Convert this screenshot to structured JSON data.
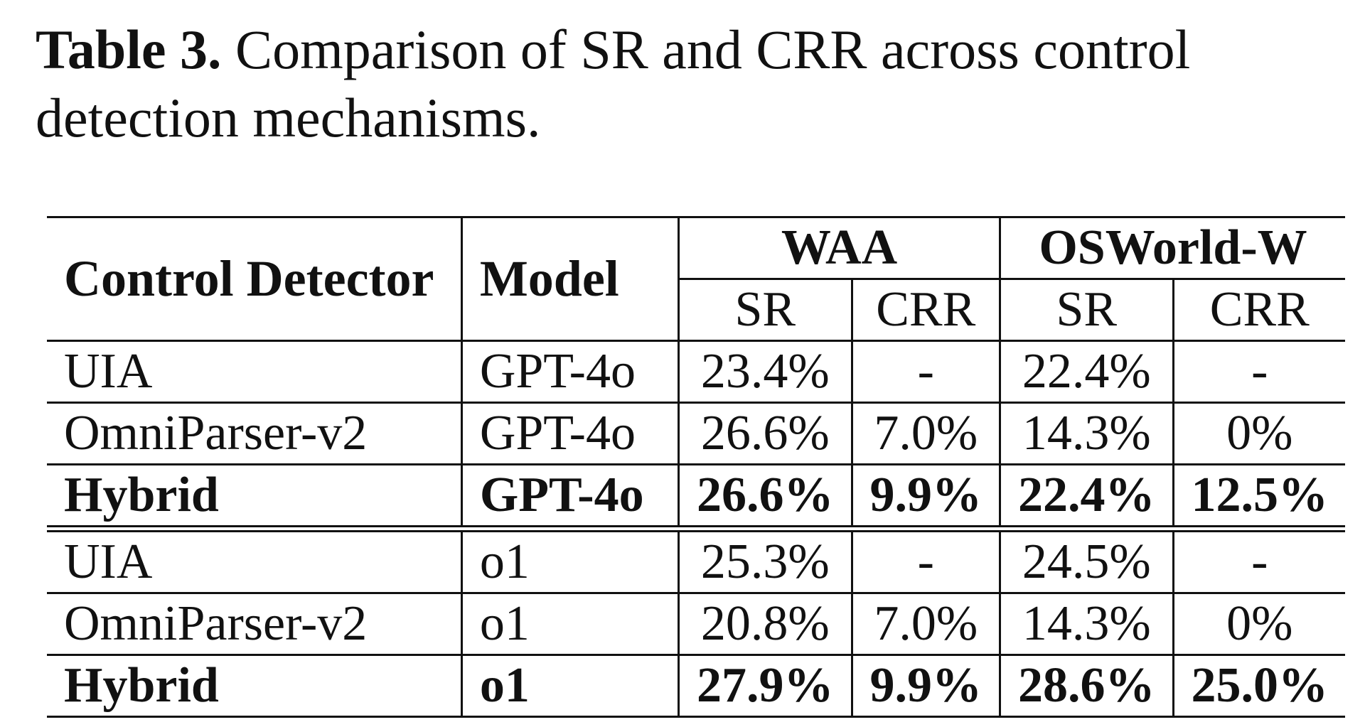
{
  "caption": {
    "label": "Table 3.",
    "text": " Comparison of SR and CRR across control detection mechanisms."
  },
  "table": {
    "header": {
      "detector": "Control Detector",
      "model": "Model",
      "group_waa": "WAA",
      "group_osworld": "OSWorld-W",
      "waa_sr": "SR",
      "waa_crr": "CRR",
      "os_sr": "SR",
      "os_crr": "CRR"
    },
    "rows": [
      {
        "detector": "UIA",
        "model": "GPT-4o",
        "waa_sr": "23.4%",
        "waa_crr": "-",
        "os_sr": "22.4%",
        "os_crr": "-",
        "bold": false
      },
      {
        "detector": "OmniParser-v2",
        "model": "GPT-4o",
        "waa_sr": "26.6%",
        "waa_crr": "7.0%",
        "os_sr": "14.3%",
        "os_crr": "0%",
        "bold": false
      },
      {
        "detector": "Hybrid",
        "model": "GPT-4o",
        "waa_sr": "26.6%",
        "waa_crr": "9.9%",
        "os_sr": "22.4%",
        "os_crr": "12.5%",
        "bold": true
      },
      {
        "detector": "UIA",
        "model": "o1",
        "waa_sr": "25.3%",
        "waa_crr": "-",
        "os_sr": "24.5%",
        "os_crr": "-",
        "bold": false
      },
      {
        "detector": "OmniParser-v2",
        "model": "o1",
        "waa_sr": "20.8%",
        "waa_crr": "7.0%",
        "os_sr": "14.3%",
        "os_crr": "0%",
        "bold": false
      },
      {
        "detector": "Hybrid",
        "model": "o1",
        "waa_sr": "27.9%",
        "waa_crr": "9.9%",
        "os_sr": "28.6%",
        "os_crr": "25.0%",
        "bold": true
      }
    ]
  }
}
